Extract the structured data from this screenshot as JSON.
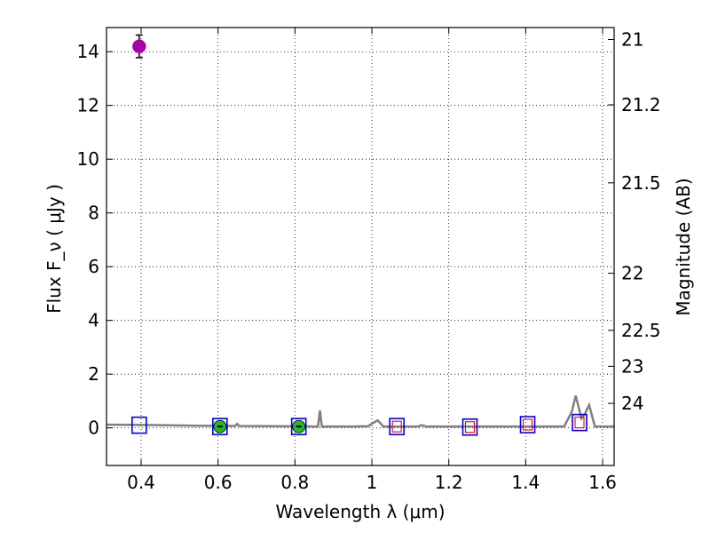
{
  "chart_data": {
    "type": "scatter",
    "xlabel": "Wavelength  λ (μm)",
    "ylabel": "Flux  F_ν  ( μJy )",
    "y2label": "Magnitude (AB)",
    "xlim": [
      0.31,
      1.63
    ],
    "ylim": [
      -1.4,
      14.9
    ],
    "grid": true,
    "x_ticks": [
      0.4,
      0.6,
      0.8,
      1.0,
      1.2,
      1.4,
      1.6
    ],
    "x_tick_labels": [
      "0.4",
      "0.6",
      "0.8",
      "1",
      "1.2",
      "1.4",
      "1.6"
    ],
    "y_ticks": [
      0,
      2,
      4,
      6,
      8,
      10,
      12,
      14
    ],
    "y_tick_labels": [
      "0",
      "2",
      "4",
      "6",
      "8",
      "10",
      "12",
      "14"
    ],
    "right_axis_ticks": [
      {
        "label": "21",
        "mag": 21
      },
      {
        "label": "21.2",
        "mag": 21.2
      },
      {
        "label": "21.5",
        "mag": 21.5
      },
      {
        "label": "22",
        "mag": 22
      },
      {
        "label": "22.5",
        "mag": 22.5
      },
      {
        "label": "23",
        "mag": 23
      },
      {
        "label": "24",
        "mag": 24
      }
    ],
    "series": [
      {
        "kind": "line",
        "color": "#808080",
        "points": [
          [
            0.31,
            0.12
          ],
          [
            0.38,
            0.11
          ],
          [
            0.45,
            0.1
          ],
          [
            0.55,
            0.08
          ],
          [
            0.645,
            0.07
          ],
          [
            0.65,
            0.15
          ],
          [
            0.655,
            0.07
          ],
          [
            0.75,
            0.06
          ],
          [
            0.86,
            0.05
          ],
          [
            0.865,
            0.65
          ],
          [
            0.87,
            0.05
          ],
          [
            0.95,
            0.05
          ],
          [
            0.99,
            0.06
          ],
          [
            1.005,
            0.2
          ],
          [
            1.015,
            0.28
          ],
          [
            1.03,
            0.05
          ],
          [
            1.12,
            0.05
          ],
          [
            1.13,
            0.1
          ],
          [
            1.14,
            0.05
          ],
          [
            1.3,
            0.05
          ],
          [
            1.5,
            0.05
          ],
          [
            1.52,
            0.6
          ],
          [
            1.53,
            1.2
          ],
          [
            1.545,
            0.35
          ],
          [
            1.555,
            0.55
          ],
          [
            1.565,
            0.85
          ],
          [
            1.58,
            0.05
          ],
          [
            1.63,
            0.05
          ]
        ]
      },
      {
        "kind": "points",
        "marker": "open-square",
        "color": "#0000ee",
        "x": [
          0.395,
          0.605,
          0.81,
          1.065,
          1.255,
          1.405,
          1.54
        ],
        "y": [
          0.1,
          0.05,
          0.05,
          0.05,
          0.03,
          0.12,
          0.2
        ]
      },
      {
        "kind": "points",
        "marker": "open-square-small",
        "color": "#ee0000",
        "x": [
          1.065,
          1.255,
          1.405,
          1.54
        ],
        "y": [
          0.05,
          0.03,
          0.12,
          0.2
        ]
      },
      {
        "kind": "points",
        "marker": "filled-circle",
        "color": "#22bb22",
        "x": [
          0.605,
          0.81
        ],
        "y": [
          0.05,
          0.05
        ]
      },
      {
        "kind": "points",
        "marker": "filled-circle-errorbar",
        "color": "#aa00aa",
        "x": [
          0.395
        ],
        "y": [
          14.2
        ],
        "yerr": [
          0.42
        ]
      }
    ]
  }
}
